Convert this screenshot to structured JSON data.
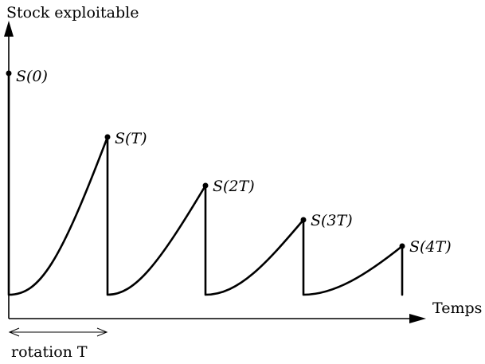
{
  "axes": {
    "y_label": "Stock exploitable",
    "x_label": "Temps"
  },
  "points": [
    {
      "label": "S(0)"
    },
    {
      "label": "S(T)"
    },
    {
      "label": "S(2T)"
    },
    {
      "label": "S(3T)"
    },
    {
      "label": "S(4T)"
    }
  ],
  "rotation": {
    "label": "rotation T"
  }
}
